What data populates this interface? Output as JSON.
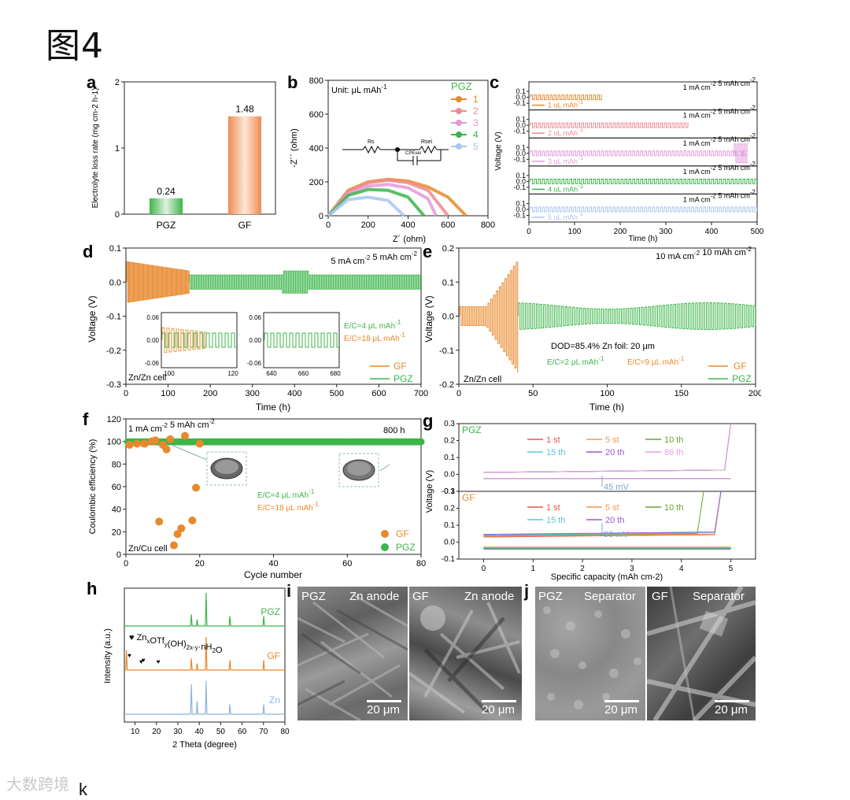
{
  "figure_title": "图4",
  "k_label": "k",
  "watermark": "大数跨境",
  "colors": {
    "gf": "#e8892b",
    "pgz": "#3cb54a",
    "zn": "#8fb5d8",
    "c1": "#e8892b",
    "c2": "#ef8a90",
    "c3": "#e39ad9",
    "c4": "#3cb54a",
    "c5": "#a9c6ef",
    "g1": "#e8534d",
    "g5": "#ee9a4e",
    "g10": "#6aa32b",
    "g15": "#58c5d6",
    "g20": "#9b59d6",
    "g86": "#e6a1e6"
  },
  "panels": {
    "a": {
      "letter": "a"
    },
    "b": {
      "letter": "b",
      "unit": "Unit: μL mAh",
      "unit_sup": "-1",
      "legend_title": "PGZ",
      "circuit": {
        "rs": "Rs",
        "rsei": "Rsei",
        "cpe": "CPEsei"
      }
    },
    "c": {
      "letter": "c"
    },
    "d": {
      "letter": "d",
      "cond": "5 mA cm",
      "cond_sup1": "-2",
      "cond_mid": " 5 mAh cm",
      "cond_sup2": "-2",
      "cell": "Zn/Zn cell",
      "ec1": "E/C=4 μL mAh",
      "ec2": "E/C=18 μL mAh",
      "ec_sup": "-1"
    },
    "e": {
      "letter": "e",
      "cond": "10 mA cm",
      "cond_sup1": "-2",
      "cond_mid": " 10 mAh cm",
      "cond_sup2": "-2",
      "dod": "DOD=85.4% Zn foil: 20 μm",
      "cell": "Zn/Zn cell",
      "ec1": "E/C=2 μL mAh",
      "ec2": "E/C=9 μL mAh",
      "ec_sup": "-1"
    },
    "f": {
      "letter": "f",
      "cond": "1 mA cm",
      "cond_sup1": "-2",
      "cond_mid": "  5 mAh cm",
      "cond_sup2": "-2",
      "hours": "800 h",
      "cell": "Zn/Cu cell",
      "ec1": "E/C=4 μL mAh",
      "ec2": "E/C=18 μL mAh",
      "ec_sup": "-1"
    },
    "g": {
      "letter": "g",
      "top_tag": "PGZ",
      "bottom_tag": "GF",
      "top_mv": "45 mV",
      "bottom_mv": "90 mV"
    },
    "h": {
      "letter": "h",
      "formula": "Zn",
      "formula_x": "x",
      "formula_mid": "OTf",
      "formula_y": "y",
      "formula_mid2": "(OH)",
      "formula_sub2": "2x-y",
      "formula_end": "·nH",
      "formula_sub3": "2",
      "formula_o": "O",
      "trace_pgz": "PGZ",
      "trace_gf": "GF",
      "trace_zn": "Zn"
    },
    "i": {
      "letter": "i",
      "left_tag": "PGZ",
      "left_title": "Zn anode",
      "right_tag": "GF",
      "right_title": "Zn anode",
      "scale": "20 μm"
    },
    "j": {
      "letter": "j",
      "left_tag": "PGZ",
      "left_title": "Separator",
      "right_tag": "GF",
      "right_title": "Separator",
      "scale": "20 μm"
    }
  },
  "chart_data": [
    {
      "id": "a",
      "type": "bar",
      "categories": [
        "PGZ",
        "GF"
      ],
      "values": [
        0.24,
        1.48
      ],
      "value_labels": [
        "0.24",
        "1.48"
      ],
      "ylabel": "Electrolyte loss rate (mg cm-2 h-1)",
      "ylim": [
        0,
        2
      ],
      "yticks": [
        0,
        1,
        2
      ]
    },
    {
      "id": "b",
      "type": "line",
      "xlabel": "Z´ (ohm)",
      "ylabel": "-Z´´ (ohm)",
      "xlim": [
        0,
        800
      ],
      "ylim": [
        0,
        800
      ],
      "xticks": [
        0,
        200,
        400,
        600,
        800
      ],
      "yticks": [
        0,
        200,
        400,
        600,
        800
      ],
      "series": [
        {
          "name": "1",
          "x": [
            0,
            100,
            200,
            300,
            400,
            500,
            600,
            690
          ],
          "y": [
            0,
            150,
            200,
            215,
            205,
            170,
            110,
            0
          ]
        },
        {
          "name": "2",
          "x": [
            0,
            100,
            200,
            300,
            400,
            500,
            600
          ],
          "y": [
            0,
            140,
            195,
            210,
            195,
            150,
            0
          ]
        },
        {
          "name": "3",
          "x": [
            0,
            100,
            200,
            300,
            400,
            500,
            540
          ],
          "y": [
            0,
            130,
            175,
            185,
            165,
            100,
            0
          ]
        },
        {
          "name": "4",
          "x": [
            0,
            100,
            200,
            300,
            400,
            480
          ],
          "y": [
            0,
            120,
            155,
            150,
            110,
            0
          ]
        },
        {
          "name": "5",
          "x": [
            0,
            100,
            200,
            300,
            380
          ],
          "y": [
            0,
            95,
            110,
            90,
            0
          ]
        }
      ]
    },
    {
      "id": "c",
      "type": "line",
      "xlabel": "Time (h)",
      "ylabel": "Voltage (V)",
      "xlim": [
        0,
        500
      ],
      "xticks": [
        0,
        100,
        200,
        300,
        400,
        500
      ],
      "condition": "1 mA cm-2 5 mAh cm-2",
      "series": [
        {
          "name": "1 μL mAh-1",
          "end_h": 160
        },
        {
          "name": "2 μL mAh-1",
          "end_h": 350
        },
        {
          "name": "3 μL mAh-1",
          "end_h": 480
        },
        {
          "name": "4 μL mAh-1",
          "end_h": 500
        },
        {
          "name": "5 μL mAh-1",
          "end_h": 500
        }
      ]
    },
    {
      "id": "d",
      "type": "line",
      "xlabel": "Time (h)",
      "ylabel": "Voltage (V)",
      "xlim": [
        0,
        700
      ],
      "ylim": [
        -0.3,
        0.1
      ],
      "xticks": [
        0,
        100,
        200,
        300,
        400,
        500,
        600,
        700
      ],
      "yticks": [
        -0.3,
        -0.2,
        -0.1,
        0.0,
        0.1
      ],
      "series": [
        {
          "name": "GF",
          "end_h": 150
        },
        {
          "name": "PGZ",
          "end_h": 700
        }
      ],
      "inset1": {
        "xticks": [
          100,
          120
        ],
        "yticks": [
          -0.06,
          0.0,
          0.06
        ]
      },
      "inset2": {
        "xticks": [
          640,
          660,
          680
        ],
        "yticks": [
          -0.06,
          0.0,
          0.06
        ]
      }
    },
    {
      "id": "e",
      "type": "line",
      "xlabel": "Time (h)",
      "ylabel": "Voltage (V)",
      "xlim": [
        0,
        200
      ],
      "ylim": [
        -0.2,
        0.2
      ],
      "xticks": [
        0,
        50,
        100,
        150,
        200
      ],
      "yticks": [
        -0.2,
        -0.1,
        0.0,
        0.1,
        0.2
      ],
      "series": [
        {
          "name": "GF",
          "end_h": 40
        },
        {
          "name": "PGZ",
          "end_h": 200
        }
      ]
    },
    {
      "id": "f",
      "type": "scatter",
      "xlabel": "Cycle number",
      "ylabel": "Coulombic efficiency (%)",
      "xlim": [
        0,
        80
      ],
      "ylim": [
        0,
        120
      ],
      "xticks": [
        0,
        20,
        40,
        60,
        80
      ],
      "yticks": [
        0,
        20,
        40,
        60,
        80,
        100,
        120
      ],
      "series": [
        {
          "name": "GF",
          "x": [
            1,
            3,
            5,
            7,
            8,
            9,
            10,
            11,
            12,
            13,
            14,
            15,
            16,
            18,
            19,
            20
          ],
          "y": [
            97,
            98,
            98,
            100,
            101,
            29,
            97,
            93,
            102,
            8,
            18,
            23,
            105,
            30,
            59,
            98
          ]
        },
        {
          "name": "PGZ",
          "x": [
            1,
            10,
            20,
            30,
            40,
            50,
            60,
            70,
            80
          ],
          "y": [
            99.5,
            99.6,
            99.7,
            99.7,
            99.8,
            99.8,
            99.8,
            99.8,
            99.8
          ]
        }
      ]
    },
    {
      "id": "g",
      "type": "line",
      "xlabel": "Specific capacity (mAh cm-2)",
      "ylabel": "Voltage (V)",
      "xlim": [
        -0.5,
        5.5
      ],
      "xticks": [
        0,
        1,
        2,
        3,
        4,
        5
      ],
      "top_yticks": [
        -0.1,
        0.0,
        0.1,
        0.2,
        0.3
      ],
      "bottom_yticks": [
        -0.1,
        0.0,
        0.1,
        0.2,
        0.3
      ],
      "top_series": [
        "1 st",
        "5 st",
        "10 th",
        "15 th",
        "20 th",
        "86 th"
      ],
      "bottom_series": [
        "1 st",
        "5 st",
        "10 th",
        "15 th",
        "20 th"
      ]
    },
    {
      "id": "h",
      "type": "line",
      "xlabel": "2 Theta (degree)",
      "ylabel": "Intensity (a.u.)",
      "xlim": [
        5,
        80
      ],
      "xticks": [
        10,
        20,
        30,
        40,
        50,
        60,
        70,
        80
      ],
      "series": [
        {
          "name": "PGZ",
          "peaks": [
            [
              36.3,
              0.35
            ],
            [
              39.0,
              0.2
            ],
            [
              43.2,
              1.0
            ],
            [
              54.3,
              0.3
            ],
            [
              70.1,
              0.3
            ]
          ]
        },
        {
          "name": "GF",
          "peaks": [
            [
              6.0,
              0.6
            ],
            [
              36.3,
              0.35
            ],
            [
              39.0,
              0.2
            ],
            [
              43.2,
              1.0
            ],
            [
              54.3,
              0.3
            ],
            [
              70.1,
              0.3
            ]
          ]
        },
        {
          "name": "Zn",
          "peaks": [
            [
              36.3,
              0.9
            ],
            [
              39.0,
              0.4
            ],
            [
              43.2,
              1.0
            ],
            [
              54.3,
              0.3
            ],
            [
              70.1,
              0.3
            ]
          ]
        }
      ]
    }
  ]
}
